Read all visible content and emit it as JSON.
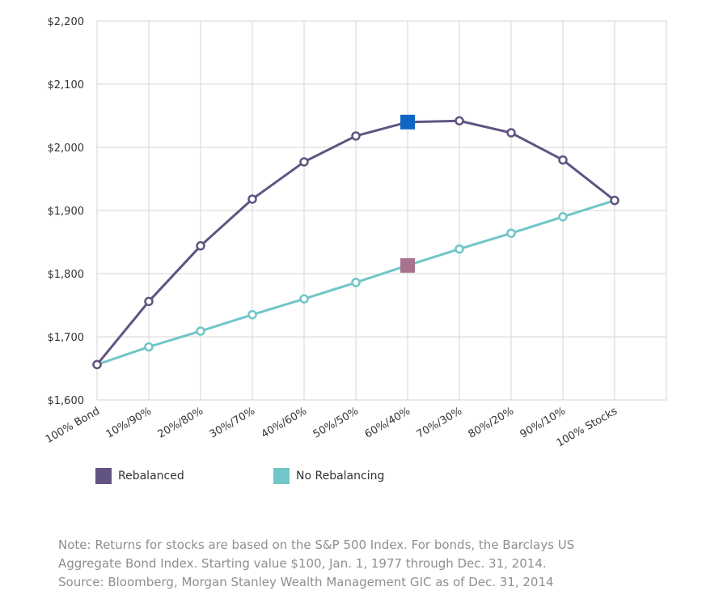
{
  "chart_data": {
    "type": "line",
    "categories": [
      "100% Bond",
      "10%/90%",
      "20%/80%",
      "30%/70%",
      "40%/60%",
      "50%/50%",
      "60%/40%",
      "70%/30%",
      "80%/20%",
      "90%/10%",
      "100% Stocks"
    ],
    "y_ticks": [
      "$1,600",
      "$1,700",
      "$1,800",
      "$1,900",
      "$2,000",
      "$2,100",
      "$2,200"
    ],
    "ylim": [
      1600,
      2200
    ],
    "grid": true,
    "highlight_index": 6,
    "series": [
      {
        "name": "Rebalanced",
        "color": "#615482",
        "highlight_color": "#1066c4",
        "values": [
          1656,
          1756,
          1844,
          1918,
          1977,
          2018,
          2040,
          2042,
          2023,
          1980,
          1916
        ]
      },
      {
        "name": "No Rebalancing",
        "color": "#70c6c8",
        "highlight_color": "#a8738f",
        "values": [
          1656,
          1684,
          1709,
          1735,
          1760,
          1786,
          1813,
          1839,
          1864,
          1890,
          1916
        ]
      }
    ]
  },
  "legend": {
    "rebalanced": "Rebalanced",
    "no_rebalancing": "No Rebalancing"
  },
  "note": {
    "line1": "Note: Returns for stocks are based on the S&P 500 Index. For bonds, the Barclays US",
    "line2": "Aggregate Bond Index. Starting value $100, Jan. 1, 1977 through Dec. 31, 2014.",
    "line3": "Source: Bloomberg, Morgan Stanley Wealth Management GIC as of Dec. 31, 2014"
  }
}
